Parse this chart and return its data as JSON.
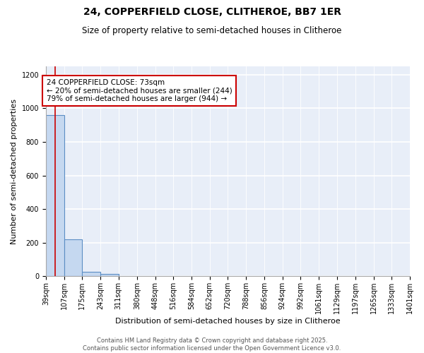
{
  "title1": "24, COPPERFIELD CLOSE, CLITHEROE, BB7 1ER",
  "title2": "Size of property relative to semi-detached houses in Clitheroe",
  "xlabel": "Distribution of semi-detached houses by size in Clitheroe",
  "ylabel": "Number of semi-detached properties",
  "bin_edges": [
    39,
    107,
    175,
    243,
    311,
    380,
    448,
    516,
    584,
    652,
    720,
    788,
    856,
    924,
    992,
    1061,
    1129,
    1197,
    1265,
    1333,
    1401
  ],
  "bar_heights": [
    960,
    220,
    25,
    12,
    0,
    0,
    0,
    0,
    0,
    0,
    0,
    0,
    0,
    0,
    0,
    0,
    0,
    0,
    0,
    0
  ],
  "bar_color": "#c5d8f0",
  "bar_edge_color": "#5b8ec4",
  "ylim": [
    0,
    1250
  ],
  "yticks": [
    0,
    200,
    400,
    600,
    800,
    1000,
    1200
  ],
  "property_size": 73,
  "vline_color": "#cc0000",
  "annotation_text": "24 COPPERFIELD CLOSE: 73sqm\n← 20% of semi-detached houses are smaller (244)\n79% of semi-detached houses are larger (944) →",
  "annotation_box_color": "#ffffff",
  "annotation_border_color": "#cc0000",
  "footer_text": "Contains HM Land Registry data © Crown copyright and database right 2025.\nContains public sector information licensed under the Open Government Licence v3.0.",
  "bg_color": "#e8eef8",
  "grid_color": "#ffffff",
  "title1_fontsize": 10,
  "title2_fontsize": 8.5,
  "tick_fontsize": 7,
  "ylabel_fontsize": 8,
  "xlabel_fontsize": 8,
  "annotation_fontsize": 7.5,
  "footer_fontsize": 6
}
